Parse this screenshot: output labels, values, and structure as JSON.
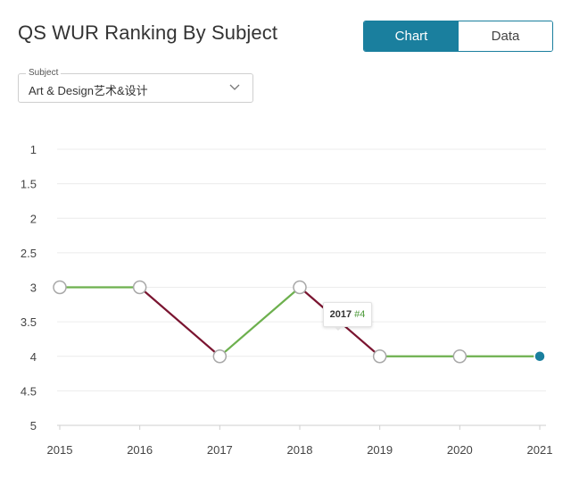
{
  "header": {
    "title": "QS WUR Ranking By Subject"
  },
  "view_toggle": {
    "chart_label": "Chart",
    "data_label": "Data",
    "selected": "Chart"
  },
  "subject_select": {
    "legend": "Subject",
    "value": "Art & Design艺术&设计"
  },
  "tooltip": {
    "year": "2017",
    "rank": "#4"
  },
  "colors": {
    "accent": "#1a7f9e",
    "improve": "#6db04e",
    "decline": "#7a1430",
    "grid": "#ececec"
  },
  "chart_data": {
    "type": "line",
    "title": "",
    "xlabel": "",
    "ylabel": "",
    "x": [
      2015,
      2016,
      2017,
      2018,
      2019,
      2020,
      2021
    ],
    "y": [
      3,
      3,
      4,
      3,
      4,
      4,
      4
    ],
    "y_ticks": [
      "1",
      "1.5",
      "2",
      "2.5",
      "3",
      "3.5",
      "4",
      "4.5",
      "5"
    ],
    "x_ticks": [
      "2015",
      "2016",
      "2017",
      "2018",
      "2019",
      "2020",
      "2021"
    ],
    "ylim": [
      1,
      5
    ],
    "y_inverted": true,
    "grid": true,
    "segment_colors": [
      "improve",
      "decline",
      "improve",
      "decline",
      "improve",
      "improve"
    ],
    "highlighted_point": 6
  }
}
